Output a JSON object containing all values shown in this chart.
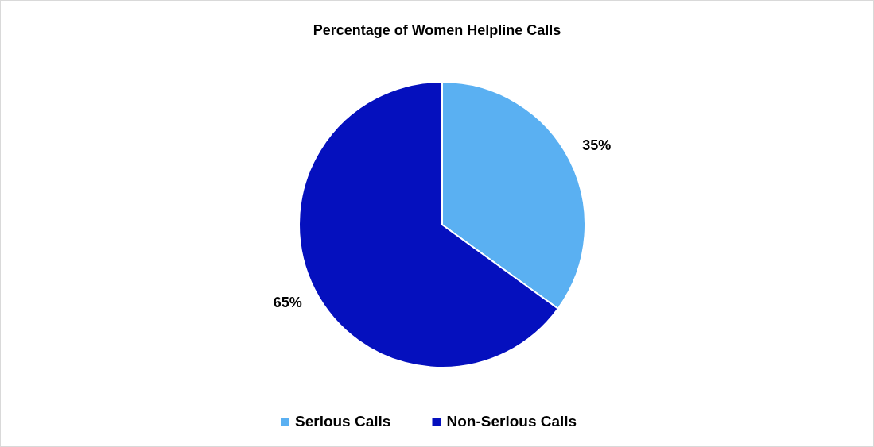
{
  "chart_data": {
    "type": "pie",
    "title": "Percentage of Women Helpline Calls",
    "categories": [
      "Serious Calls",
      "Non-Serious Calls"
    ],
    "values": [
      35,
      65
    ],
    "value_labels": [
      "35%",
      "65%"
    ],
    "colors": [
      "#5ab0f2",
      "#0510be"
    ],
    "legend": "bottom"
  }
}
